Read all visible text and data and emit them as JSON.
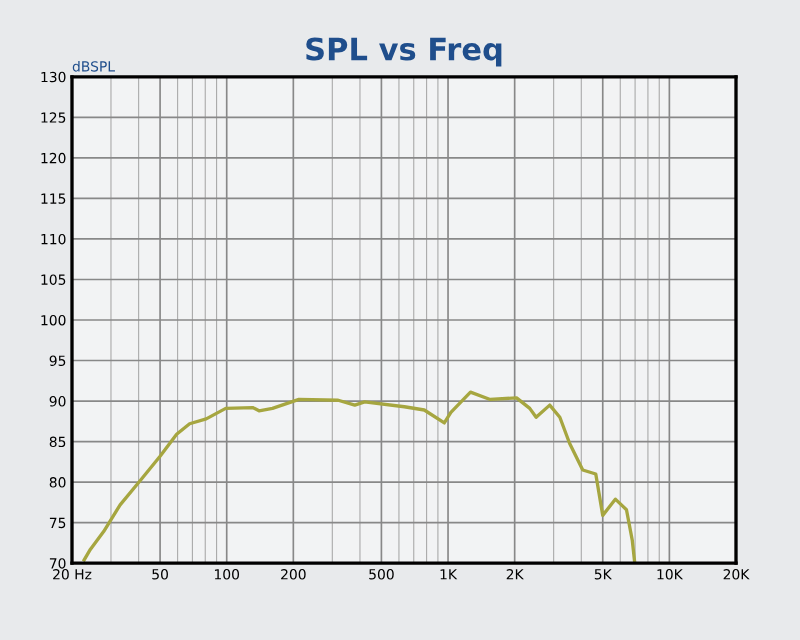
{
  "chart_data": {
    "type": "line",
    "title": "SPL vs Freq",
    "ylabel": "dBSPL",
    "series": [
      {
        "color": "#a6a640",
        "x": [
          22.7,
          24.2,
          27.8,
          33,
          40.7,
          50,
          59.4,
          68,
          80.8,
          99,
          131,
          140,
          161,
          212,
          319,
          379,
          420,
          635,
          781,
          962,
          1030,
          1263,
          1550,
          2040,
          2340,
          2500,
          2880,
          3200,
          3540,
          4060,
          4650,
          5000,
          5700,
          6400,
          6800,
          6970
        ],
        "values": [
          70.4,
          71.7,
          73.9,
          77.2,
          80.2,
          83.2,
          85.9,
          87.2,
          87.8,
          89.1,
          89.2,
          88.8,
          89.1,
          90.2,
          90.1,
          89.5,
          89.9,
          89.3,
          88.9,
          87.3,
          88.6,
          91.1,
          90.2,
          90.4,
          89.1,
          88.0,
          89.5,
          88.0,
          84.8,
          81.5,
          81.0,
          75.9,
          77.9,
          76.6,
          72.8,
          70.1
        ]
      }
    ],
    "log": "x",
    "xlim": [
      20,
      20000
    ],
    "xticks": [
      {
        "value": 20,
        "label": "20 Hz"
      },
      50,
      100,
      200,
      500,
      {
        "value": 1000,
        "label": "1K"
      },
      {
        "value": 2000,
        "label": "2K"
      },
      {
        "value": 5000,
        "label": "5K"
      },
      {
        "value": 10000,
        "label": "10K"
      },
      {
        "value": 20000,
        "label": "20K"
      }
    ],
    "ylim": [
      70,
      130
    ],
    "yticks": [
      70,
      75,
      80,
      85,
      90,
      95,
      100,
      105,
      110,
      115,
      120,
      125,
      130
    ],
    "grid": true,
    "marker": "none",
    "line_style": "solid"
  }
}
